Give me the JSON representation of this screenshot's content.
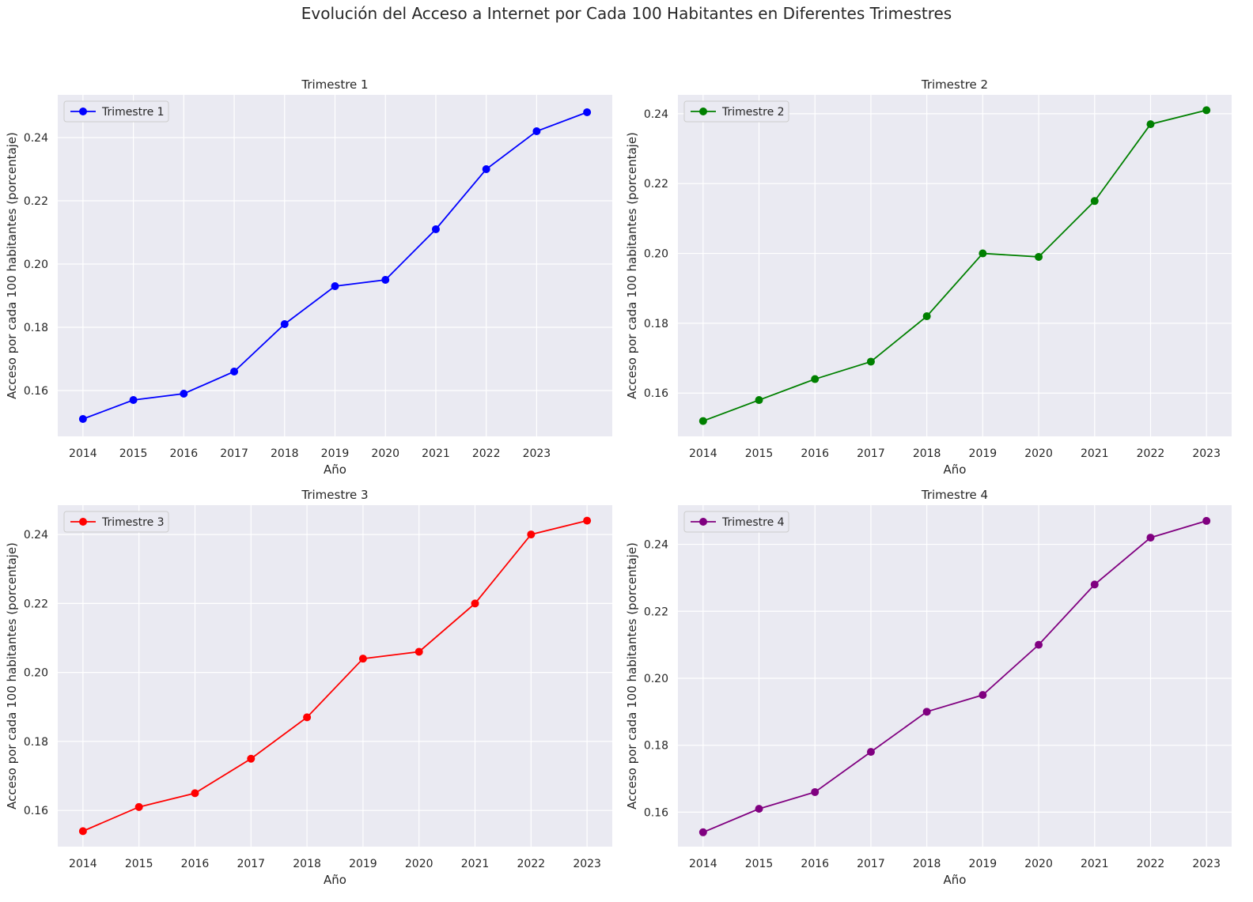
{
  "title": "Evolución del Acceso a Internet por Cada 100 Habitantes en Diferentes Trimestres",
  "chart_data": [
    {
      "type": "line",
      "title": "Trimestre 1",
      "xlabel": "Año",
      "ylabel": "Acceso por cada 100 habitantes (porcentaje)",
      "x": [
        2014,
        2015,
        2016,
        2017,
        2018,
        2019,
        2020,
        2021,
        2022,
        2023,
        2024
      ],
      "xticks": [
        "2014",
        "2015",
        "2016",
        "2017",
        "2018",
        "2019",
        "2020",
        "2021",
        "2022",
        "2023"
      ],
      "yticks": [
        "0.16",
        "0.18",
        "0.20",
        "0.22",
        "0.24"
      ],
      "xlim": [
        2013.5,
        2024.5
      ],
      "ylim": [
        0.1455,
        0.2535
      ],
      "grid": true,
      "legend_position": "upper-left",
      "series": [
        {
          "name": "Trimestre 1",
          "color": "#0000ff",
          "values": [
            0.151,
            0.157,
            0.159,
            0.166,
            0.181,
            0.193,
            0.195,
            0.211,
            0.23,
            0.242,
            0.248
          ]
        }
      ]
    },
    {
      "type": "line",
      "title": "Trimestre 2",
      "xlabel": "Año",
      "ylabel": "Acceso por cada 100 habitantes (porcentaje)",
      "x": [
        2014,
        2015,
        2016,
        2017,
        2018,
        2019,
        2020,
        2021,
        2022,
        2023
      ],
      "xticks": [
        "2014",
        "2015",
        "2016",
        "2017",
        "2018",
        "2019",
        "2020",
        "2021",
        "2022",
        "2023"
      ],
      "yticks": [
        "0.16",
        "0.18",
        "0.20",
        "0.22",
        "0.24"
      ],
      "xlim": [
        2013.55,
        2023.45
      ],
      "ylim": [
        0.1476,
        0.2454
      ],
      "grid": true,
      "legend_position": "upper-left",
      "series": [
        {
          "name": "Trimestre 2",
          "color": "#008000",
          "values": [
            0.152,
            0.158,
            0.164,
            0.169,
            0.182,
            0.2,
            0.199,
            0.215,
            0.237,
            0.241
          ]
        }
      ]
    },
    {
      "type": "line",
      "title": "Trimestre 3",
      "xlabel": "Año",
      "ylabel": "Acceso por cada 100 habitantes (porcentaje)",
      "x": [
        2014,
        2015,
        2016,
        2017,
        2018,
        2019,
        2020,
        2021,
        2022,
        2023
      ],
      "xticks": [
        "2014",
        "2015",
        "2016",
        "2017",
        "2018",
        "2019",
        "2020",
        "2021",
        "2022",
        "2023"
      ],
      "yticks": [
        "0.16",
        "0.18",
        "0.20",
        "0.22",
        "0.24"
      ],
      "xlim": [
        2013.55,
        2023.45
      ],
      "ylim": [
        0.1495,
        0.2485
      ],
      "grid": true,
      "legend_position": "upper-left",
      "series": [
        {
          "name": "Trimestre 3",
          "color": "#ff0000",
          "values": [
            0.154,
            0.161,
            0.165,
            0.175,
            0.187,
            0.204,
            0.206,
            0.22,
            0.24,
            0.244
          ]
        }
      ]
    },
    {
      "type": "line",
      "title": "Trimestre 4",
      "xlabel": "Año",
      "ylabel": "Acceso por cada 100 habitantes (porcentaje)",
      "x": [
        2014,
        2015,
        2016,
        2017,
        2018,
        2019,
        2020,
        2021,
        2022,
        2023
      ],
      "xticks": [
        "2014",
        "2015",
        "2016",
        "2017",
        "2018",
        "2019",
        "2020",
        "2021",
        "2022",
        "2023"
      ],
      "yticks": [
        "0.16",
        "0.18",
        "0.20",
        "0.22",
        "0.24"
      ],
      "xlim": [
        2013.55,
        2023.45
      ],
      "ylim": [
        0.1497,
        0.2517
      ],
      "grid": true,
      "legend_position": "upper-left",
      "series": [
        {
          "name": "Trimestre 4",
          "color": "#800080",
          "values": [
            0.154,
            0.161,
            0.166,
            0.178,
            0.19,
            0.195,
            0.21,
            0.228,
            0.242,
            0.247
          ]
        }
      ]
    }
  ]
}
